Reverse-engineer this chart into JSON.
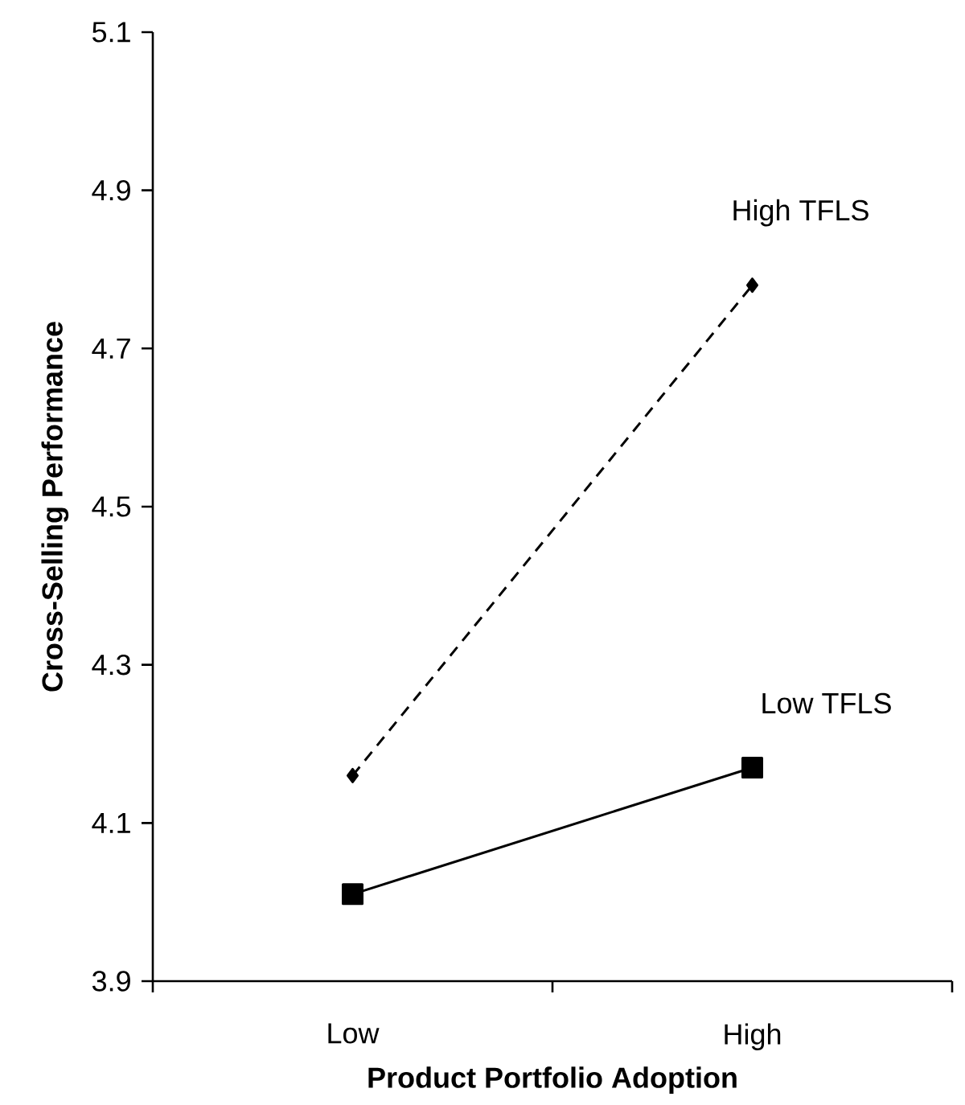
{
  "chart_data": {
    "type": "line",
    "xlabel": "Product Portfolio Adoption",
    "ylabel": "Cross-Selling Performance",
    "categories": [
      "Low",
      "High"
    ],
    "series": [
      {
        "name": "High TFLS",
        "color": "#000000",
        "values": [
          4.16,
          4.78
        ],
        "marker": "diamond",
        "line_style": "dashed"
      },
      {
        "name": "Low TFLS",
        "color": "#000000",
        "values": [
          4.01,
          4.17
        ],
        "marker": "square",
        "line_style": "solid"
      }
    ],
    "ylim": [
      3.9,
      5.1
    ],
    "yticks": [
      3.9,
      4.1,
      4.3,
      4.5,
      4.7,
      4.9,
      5.1
    ],
    "grid": false,
    "legend": false
  }
}
